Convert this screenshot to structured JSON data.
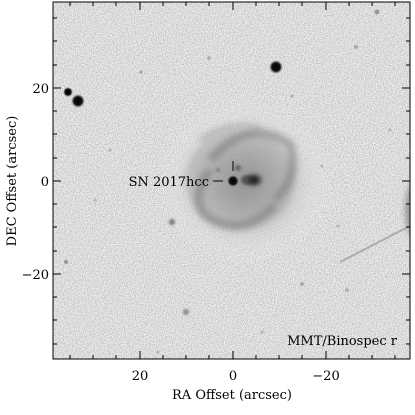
{
  "figure": {
    "xlabel": "RA Offset (arcsec)",
    "ylabel": "DEC Offset (arcsec)",
    "x_ticks": [
      "20",
      "0",
      "−20"
    ],
    "y_ticks": [
      "20",
      "0",
      "−20"
    ],
    "target_label": "SN 2017hcc",
    "instrument_label": "MMT/Binospec r"
  }
}
